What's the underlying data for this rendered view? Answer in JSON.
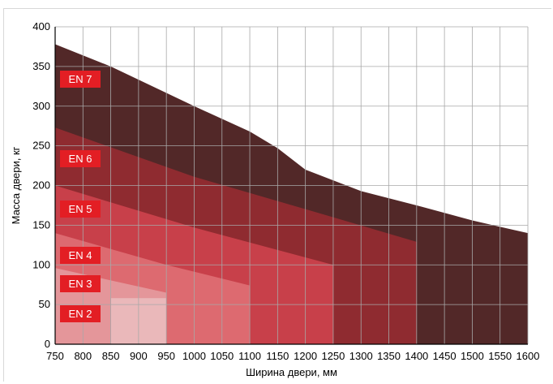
{
  "chart_data": {
    "type": "area",
    "xlabel": "Ширина двери, мм",
    "ylabel": "Масса двери, кг",
    "xlim": [
      750,
      1600
    ],
    "ylim": [
      0,
      400
    ],
    "x_ticks": [
      "750",
      "800",
      "850",
      "900",
      "950",
      "1000",
      "1050",
      "1100",
      "1150",
      "1200",
      "1250",
      "1300",
      "1350",
      "1400",
      "1450",
      "1500",
      "1550",
      "1600"
    ],
    "y_ticks": [
      "0",
      "50",
      "100",
      "150",
      "200",
      "250",
      "300",
      "350",
      "400"
    ],
    "grid": true,
    "series": [
      {
        "name": "EN 7",
        "color": "#522828",
        "points": [
          [
            750,
            378
          ],
          [
            850,
            350
          ],
          [
            1000,
            300
          ],
          [
            1100,
            268
          ],
          [
            1150,
            247
          ],
          [
            1200,
            220
          ],
          [
            1300,
            193
          ],
          [
            1400,
            175
          ],
          [
            1500,
            156
          ],
          [
            1550,
            148
          ],
          [
            1600,
            140
          ]
        ]
      },
      {
        "name": "EN 6",
        "color": "#8f2b30",
        "points": [
          [
            750,
            273
          ],
          [
            1000,
            211
          ],
          [
            1250,
            160
          ],
          [
            1400,
            129
          ],
          [
            1400,
            0
          ]
        ]
      },
      {
        "name": "EN 5",
        "color": "#c8404a",
        "points": [
          [
            750,
            200
          ],
          [
            1000,
            147
          ],
          [
            1250,
            100
          ],
          [
            1250,
            0
          ]
        ]
      },
      {
        "name": "EN 4",
        "color": "#dd6a70",
        "points": [
          [
            750,
            140
          ],
          [
            950,
            100
          ],
          [
            1100,
            74
          ],
          [
            1100,
            0
          ]
        ]
      },
      {
        "name": "EN 3",
        "color": "#e4969a",
        "points": [
          [
            750,
            96
          ],
          [
            950,
            65
          ],
          [
            950,
            0
          ]
        ]
      },
      {
        "name": "EN 2",
        "color": "#eab8ba",
        "points": [
          [
            850,
            0
          ],
          [
            850,
            58
          ],
          [
            950,
            58
          ],
          [
            950,
            0
          ]
        ]
      }
    ],
    "label_color": "#e31e24"
  }
}
